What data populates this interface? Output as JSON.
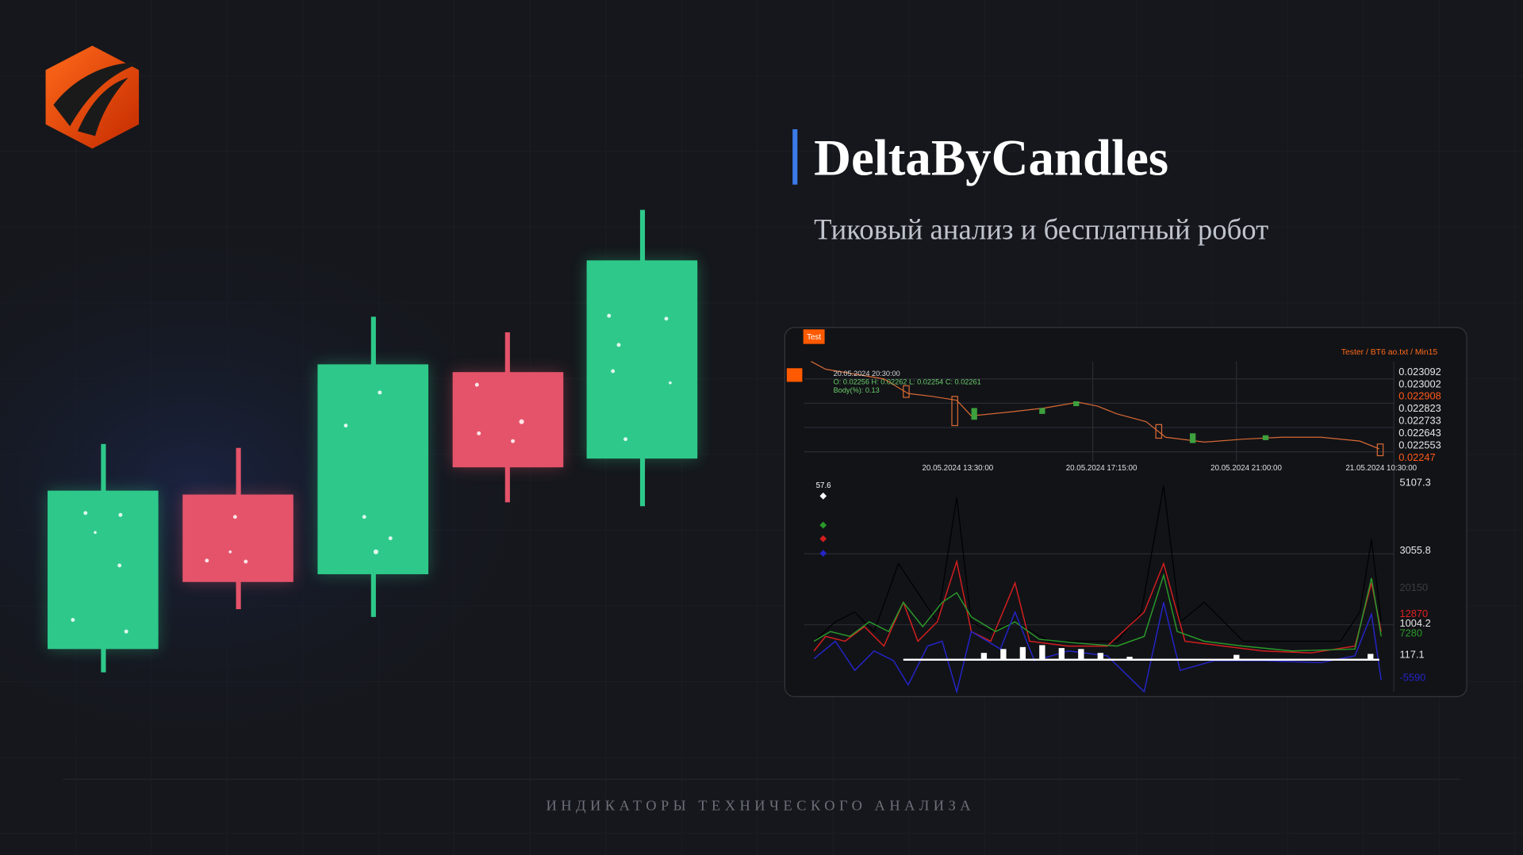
{
  "header": {
    "title": "DeltaByCandles",
    "subtitle": "Тиковый анализ и бесплатный робот"
  },
  "screenshot": {
    "badge": "Test",
    "caption": "Tester / BT6 ao.txt / Min15",
    "info": [
      "20.05.2024 20:30:00",
      "O: 0.02256 H: 0.02262 L: 0.02254 C: 0.02261",
      "Body(%): 0.13"
    ],
    "price_labels": [
      "0.023092",
      "0.023002",
      "0.022908",
      "0.022823",
      "0.022733",
      "0.022643",
      "0.022553",
      "0.02247"
    ],
    "time_labels": [
      "20.05.2024 13:30:00",
      "20.05.2024 17:15:00",
      "20.05.2024 21:00:00",
      "21.05.2024 10:30:00"
    ],
    "indicator_value": "57.6",
    "indicator_labels": [
      "5107.3",
      "3055.8",
      "20150",
      "12870",
      "1004.2",
      "7280",
      "117.1",
      "-5590"
    ]
  },
  "footer": "ИНДИКАТОРЫ ТЕХНИЧЕСКОГО АНАЛИЗА"
}
